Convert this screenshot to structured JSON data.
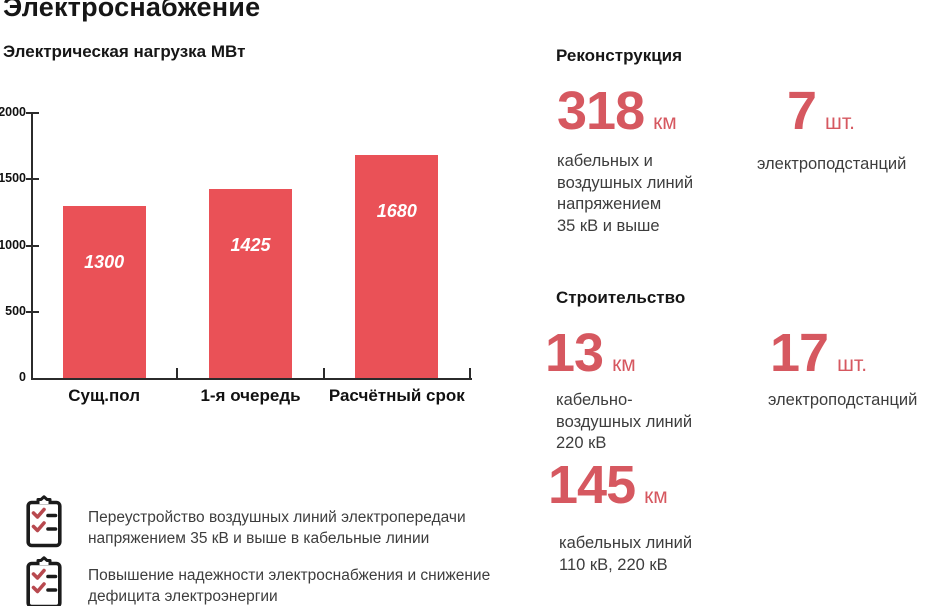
{
  "page": {
    "title": "Электроснабжение"
  },
  "chart_data": {
    "type": "bar",
    "title": "Электрическая нагрузка МВт",
    "categories": [
      "Сущ.пол",
      "1-я очередь",
      "Расчётный срок"
    ],
    "values": [
      1300,
      1425,
      1680
    ],
    "xlabel": "",
    "ylabel": "МВт",
    "ylim": [
      0,
      2000
    ],
    "yticks": [
      0,
      500,
      1000,
      1500,
      2000
    ],
    "grid": false,
    "legend": false,
    "bar_color": "#ea5157",
    "value_label_color": "#ffffff"
  },
  "sections": {
    "reconstruction": {
      "heading": "Реконструкция",
      "stats": [
        {
          "value": "318",
          "unit": "км",
          "description": "кабельных и\nвоздушных линий\nнапряжением\n35 кВ и выше"
        },
        {
          "value": "7",
          "unit": "шт.",
          "description": "электроподстанций"
        }
      ]
    },
    "construction": {
      "heading": "Строительство",
      "stats": [
        {
          "value": "13",
          "unit": "км",
          "description": "кабельно-\nвоздушных линий\n220 кВ"
        },
        {
          "value": "17",
          "unit": "шт.",
          "description": "электроподстанций"
        },
        {
          "value": "145",
          "unit": "км",
          "description": "кабельных линий\n110 кВ, 220 кВ"
        }
      ]
    }
  },
  "notes": [
    {
      "icon": "checklist-icon",
      "text": "Переустройство воздушных линий электропередачи\nнапряжением 35 кВ и выше в кабельные линии"
    },
    {
      "icon": "checklist-icon",
      "text": "Повышение надежности электроснабжения и снижение\nдефицита электроэнергии"
    }
  ],
  "colors": {
    "bar": "#ea5157",
    "accent_number": "#d65860",
    "check": "#b8494f",
    "ink": "#1c1c1c",
    "body_text": "#3d3d3d"
  }
}
